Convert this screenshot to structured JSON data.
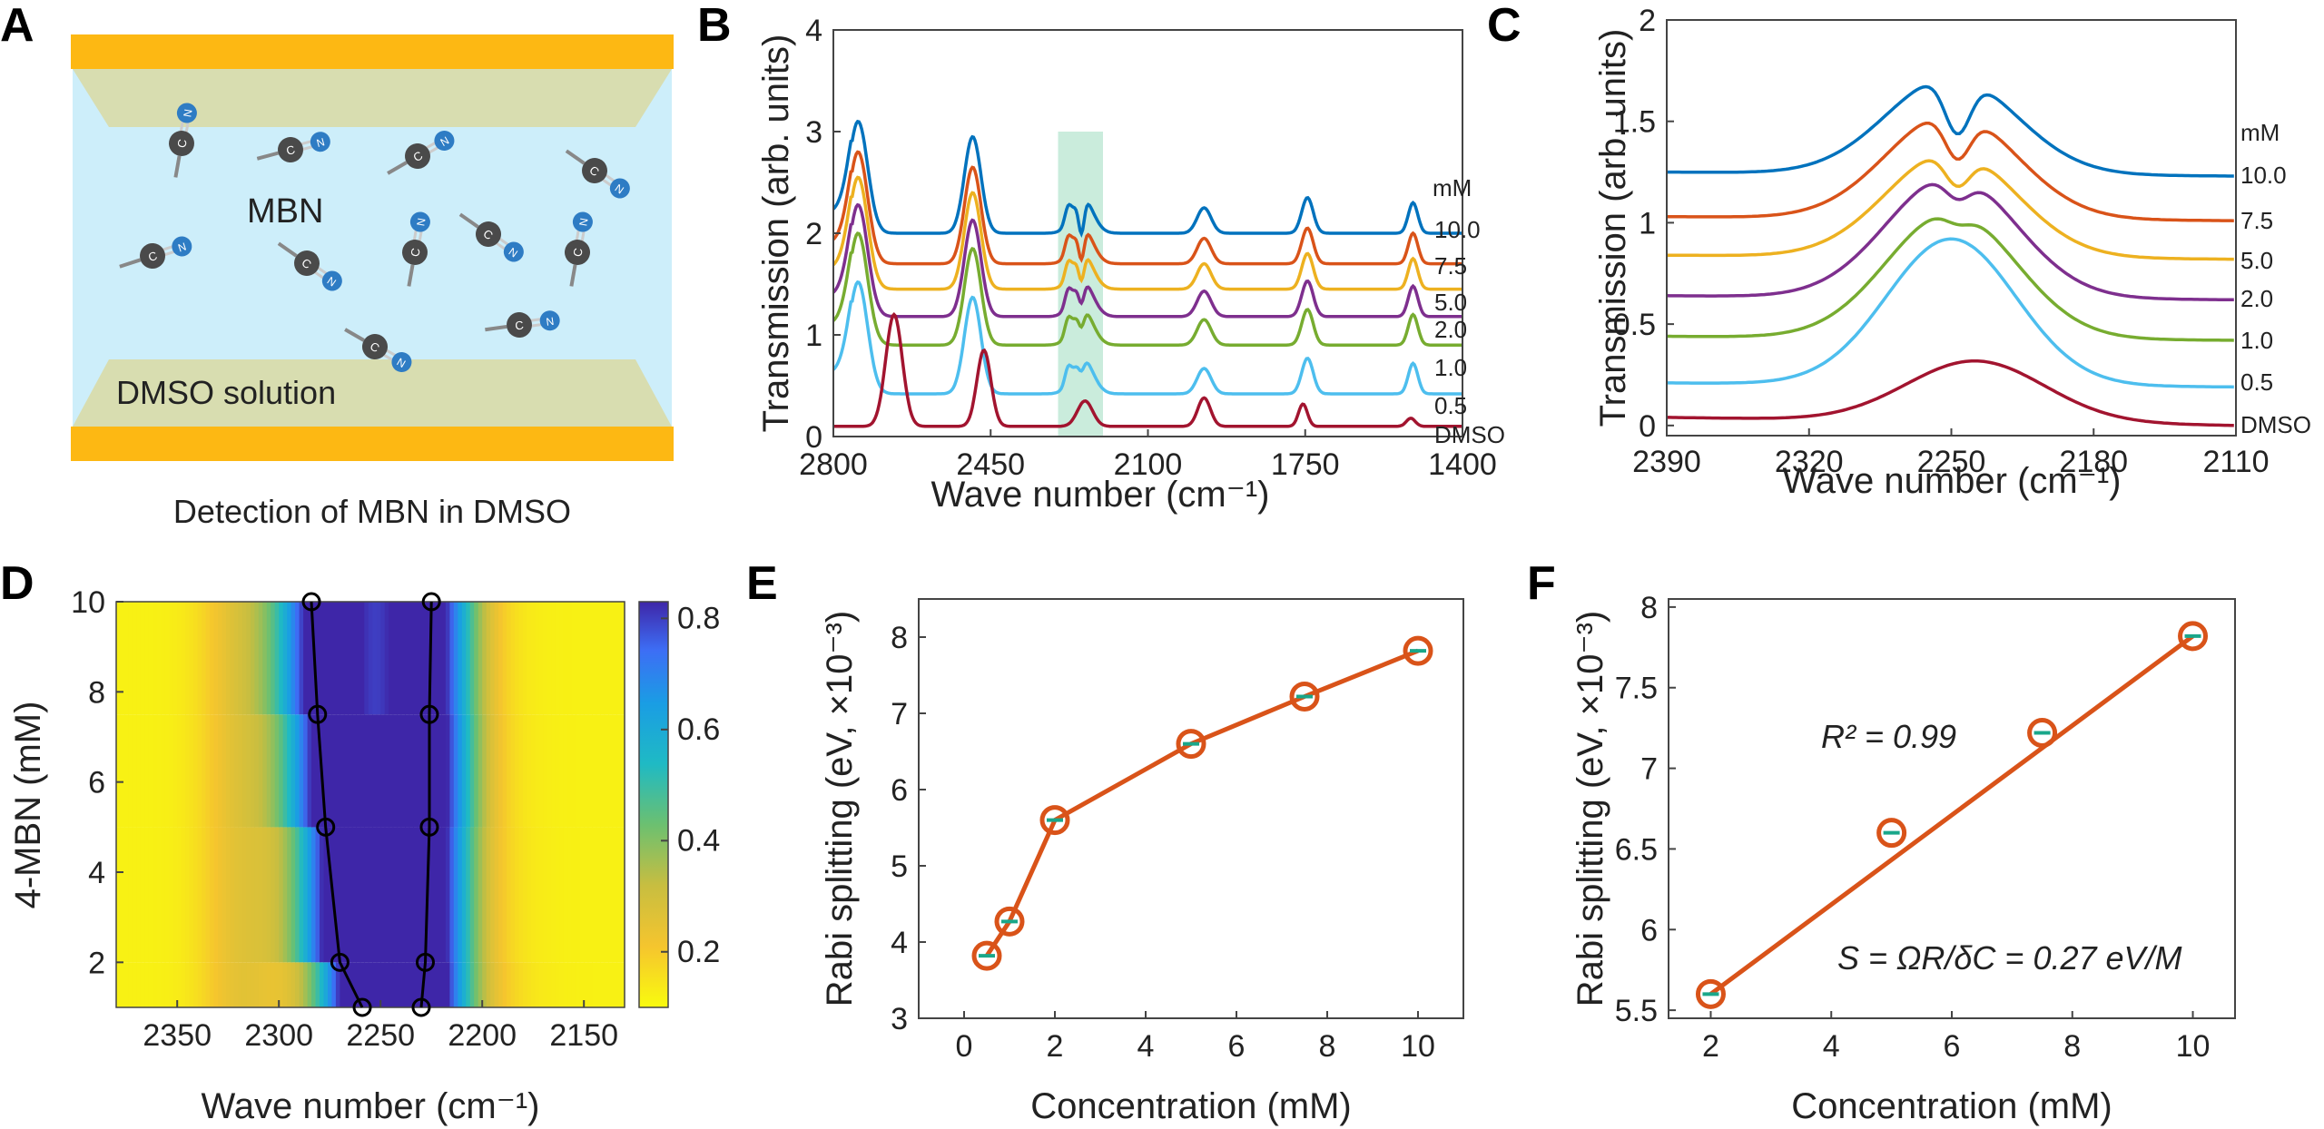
{
  "figure": {
    "panel_letters": [
      "A",
      "B",
      "C",
      "D",
      "E",
      "F"
    ]
  },
  "panel_a": {
    "molecule_label": "MBN",
    "solution_label": "DMSO solution",
    "caption": "Detection of MBN in DMSO",
    "atom_c": "C",
    "atom_n": "N",
    "colors": {
      "electrode": "#FDB813",
      "liquid": "#CDEEFA",
      "mirror": "#D8DDB0"
    }
  },
  "chart_data": [
    {
      "id": "B",
      "type": "line",
      "xlabel": "Wave number (cm⁻¹)",
      "ylabel": "Transmission (arb. units)",
      "xlim": [
        2800,
        1400
      ],
      "ylim": [
        0,
        4
      ],
      "xticks": [
        "2800",
        "2450",
        "2100",
        "1750",
        "1400"
      ],
      "yticks": [
        "0",
        "1",
        "2",
        "3",
        "4"
      ],
      "legend_title": "mM",
      "highlight_band": [
        2300,
        2200
      ],
      "series": [
        {
          "name": "10.0",
          "color": "#0072BD",
          "offset": 2.0
        },
        {
          "name": "7.5",
          "color": "#D95319",
          "offset": 1.7
        },
        {
          "name": "5.0",
          "color": "#EDB120",
          "offset": 1.45
        },
        {
          "name": "2.0",
          "color": "#7E2F8E",
          "offset": 1.18
        },
        {
          "name": "1.0",
          "color": "#77AC30",
          "offset": 0.9
        },
        {
          "name": "0.5",
          "color": "#4DBEEE",
          "offset": 0.42
        },
        {
          "name": "DMSO",
          "color": "#A2142F",
          "offset": 0.1
        }
      ]
    },
    {
      "id": "C",
      "type": "line",
      "xlabel": "Wave number (cm⁻¹)",
      "ylabel": "Transmission (arb. units)",
      "xlim": [
        2390,
        2110
      ],
      "ylim": [
        0,
        2
      ],
      "xticks": [
        "2390",
        "2320",
        "2250",
        "2180",
        "2110"
      ],
      "yticks": [
        "0",
        "0.5",
        "1",
        "1.5",
        "2"
      ],
      "legend_title": "mM",
      "series": [
        {
          "name": "10.0",
          "color": "#0072BD",
          "offset": 1.23
        },
        {
          "name": "7.5",
          "color": "#D95319",
          "offset": 1.01
        },
        {
          "name": "5.0",
          "color": "#EDB120",
          "offset": 0.82
        },
        {
          "name": "2.0",
          "color": "#7E2F8E",
          "offset": 0.62
        },
        {
          "name": "1.0",
          "color": "#77AC30",
          "offset": 0.42
        },
        {
          "name": "0.5",
          "color": "#4DBEEE",
          "offset": 0.19
        },
        {
          "name": "DMSO",
          "color": "#A2142F",
          "offset": 0.0
        }
      ]
    },
    {
      "id": "D",
      "type": "heatmap",
      "xlabel": "Wave number (cm⁻¹)",
      "ylabel": "4-MBN (mM)",
      "xlim": [
        2380,
        2130
      ],
      "ylim": [
        1,
        10
      ],
      "xticks": [
        "2350",
        "2300",
        "2250",
        "2200",
        "2150"
      ],
      "yticks": [
        "2",
        "4",
        "6",
        "8",
        "10"
      ],
      "colorbar_ticks": [
        "0.2",
        "0.4",
        "0.6",
        "0.8"
      ],
      "colorbar_range": [
        0.1,
        0.83
      ],
      "rows_mM": [
        1,
        2,
        5,
        7.5,
        10
      ],
      "lower_branch": {
        "mM": [
          1,
          2,
          5,
          7.5,
          10
        ],
        "wavenumber": [
          2259,
          2270,
          2277,
          2281,
          2284
        ]
      },
      "upper_branch": {
        "mM": [
          1,
          2,
          5,
          7.5,
          10
        ],
        "wavenumber": [
          2230,
          2228,
          2226,
          2226,
          2225
        ]
      }
    },
    {
      "id": "E",
      "type": "line",
      "xlabel": "Concentration (mM)",
      "ylabel": "Rabi splitting (eV, ×10⁻³)",
      "xlim": [
        -1,
        11
      ],
      "ylim": [
        3,
        8.5
      ],
      "xticks": [
        "0",
        "2",
        "4",
        "6",
        "8",
        "10"
      ],
      "yticks": [
        "3",
        "4",
        "5",
        "6",
        "7",
        "8"
      ],
      "x": [
        0.5,
        1,
        2,
        5,
        7.5,
        10
      ],
      "y": [
        3.82,
        4.27,
        5.6,
        6.6,
        7.22,
        7.82
      ],
      "color": "#D95319"
    },
    {
      "id": "F",
      "type": "scatter",
      "xlabel": "Concentration (mM)",
      "ylabel": "Rabi splitting (eV, ×10⁻³)",
      "xlim": [
        1.3,
        10.7
      ],
      "ylim": [
        5.5,
        8
      ],
      "xticks": [
        "2",
        "4",
        "6",
        "8",
        "10"
      ],
      "yticks": [
        "5.5",
        "6",
        "6.5",
        "7",
        "7.5",
        "8"
      ],
      "x": [
        2,
        5,
        7.5,
        10
      ],
      "y": [
        5.6,
        6.6,
        7.22,
        7.82
      ],
      "fit_line": {
        "x": [
          2,
          10
        ],
        "y": [
          5.6,
          7.82
        ]
      },
      "r2_label": "R² = 0.99",
      "sens_label": "S = ΩR/δC = 0.27 eV/M",
      "color": "#D95319"
    }
  ]
}
